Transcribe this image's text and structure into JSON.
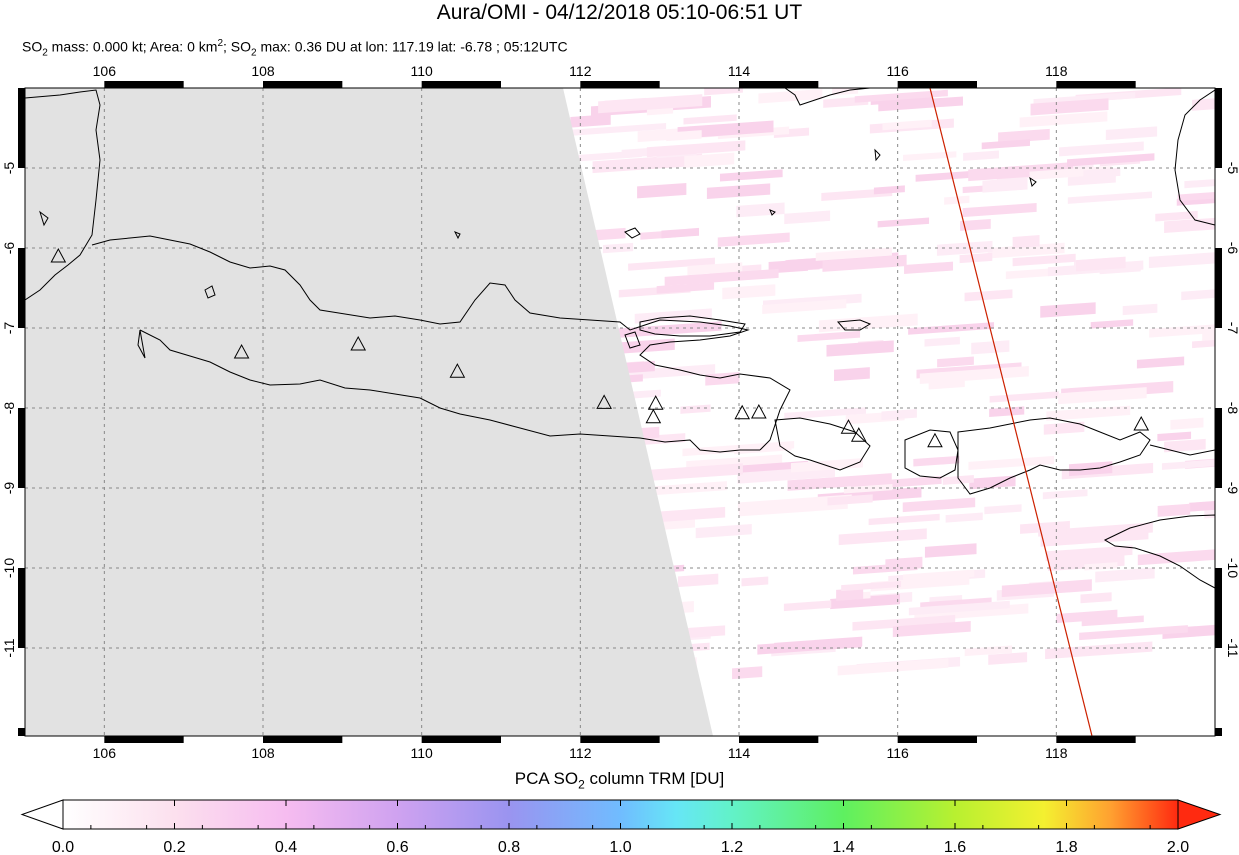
{
  "header": {
    "title": "Aura/OMI - 04/12/2018 05:10-06:51 UT",
    "subtitle_parts": {
      "so2_mass_label": "SO",
      "so2_mass_rest": " mass: 0.000 kt; Area: 0 km",
      "area_sup": "2",
      "so2_max_label": "; SO",
      "so2_max_rest": " max: 0.36 DU at lon: 117.19 lat: -6.78 ; 05:12UTC",
      "sub2": "2"
    }
  },
  "map": {
    "lon_range": [
      105,
      120
    ],
    "lat_range": [
      -12.1,
      -4
    ],
    "lon_ticks": [
      "106",
      "108",
      "110",
      "112",
      "114",
      "116",
      "118"
    ],
    "lat_ticks": [
      "-5",
      "-6",
      "-7",
      "-8",
      "-9",
      "-10",
      "-11"
    ],
    "no_data_color": "#e2e2e2",
    "coast_color": "#000000",
    "orbit_line_color": "#cc2200",
    "volcano_marker": "triangle-outline"
  },
  "colorbar": {
    "title_pre": "PCA SO",
    "title_sub": "2",
    "title_post": " column TRM [DU]",
    "labels": [
      "0.0",
      "0.2",
      "0.4",
      "0.6",
      "0.8",
      "1.0",
      "1.2",
      "1.4",
      "1.6",
      "1.8",
      "2.0"
    ],
    "colors": [
      "#ffffff",
      "#fbe0f0",
      "#f2b0ee",
      "#c8a0f0",
      "#9090f0",
      "#70c0ff",
      "#60f0f0",
      "#60f080",
      "#a0f040",
      "#f0f040",
      "#ffb030",
      "#ff3010"
    ]
  }
}
